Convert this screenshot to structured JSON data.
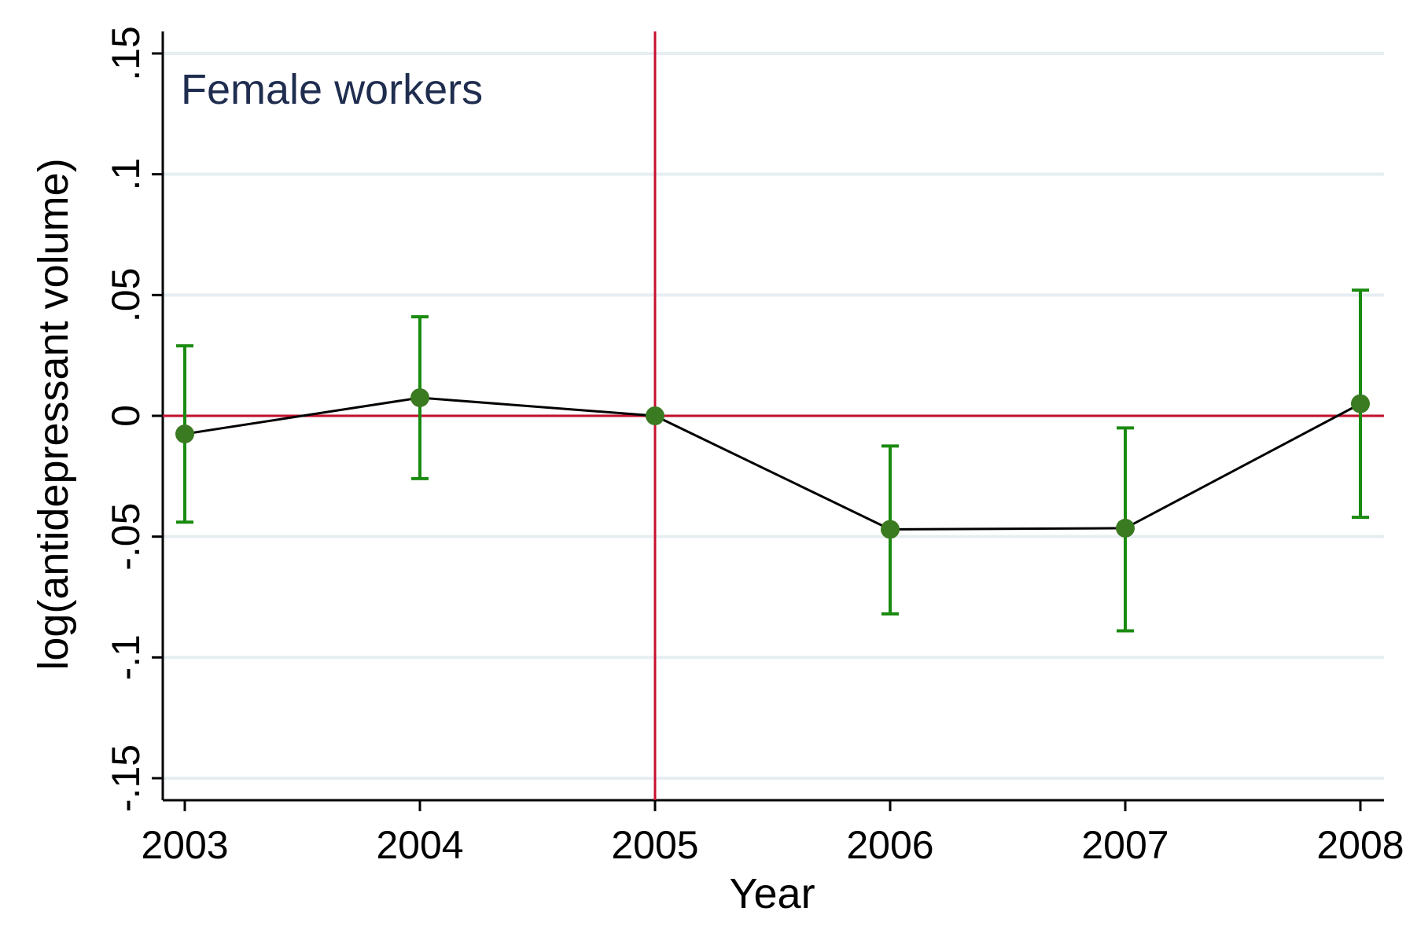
{
  "chart_data": {
    "type": "line",
    "panel_label": "Female workers",
    "xlabel": "Year",
    "ylabel": "log(antidepressant volume)",
    "x_ticks": [
      2003,
      2004,
      2005,
      2006,
      2007,
      2008
    ],
    "y_ticks": [
      -0.15,
      -0.1,
      -0.05,
      0,
      0.05,
      0.1,
      0.15
    ],
    "y_tick_labels": [
      "-.15",
      "-.1",
      "-.05",
      "0",
      ".05",
      ".1",
      ".15"
    ],
    "xlim": [
      2002.9,
      2008.1
    ],
    "ylim": [
      -0.16,
      0.16
    ],
    "grid": "horizontal",
    "reference_lines": {
      "x": 2005,
      "y": 0
    },
    "series": [
      {
        "x": [
          2003,
          2004,
          2005,
          2006,
          2007,
          2008
        ],
        "y": [
          -0.0075,
          0.0075,
          0,
          -0.047,
          -0.0465,
          0.005
        ],
        "ci_low": [
          -0.044,
          -0.026,
          0,
          -0.082,
          -0.089,
          -0.042
        ],
        "ci_high": [
          0.029,
          0.041,
          0,
          -0.0125,
          -0.005,
          0.052
        ]
      }
    ],
    "colors": {
      "line": "#000000",
      "marker": "#3a7a21",
      "error_bar": "#1a8a10",
      "reference": "#c8102e",
      "grid": "#e6eef2",
      "panel_label": "#1f2d4f"
    }
  }
}
